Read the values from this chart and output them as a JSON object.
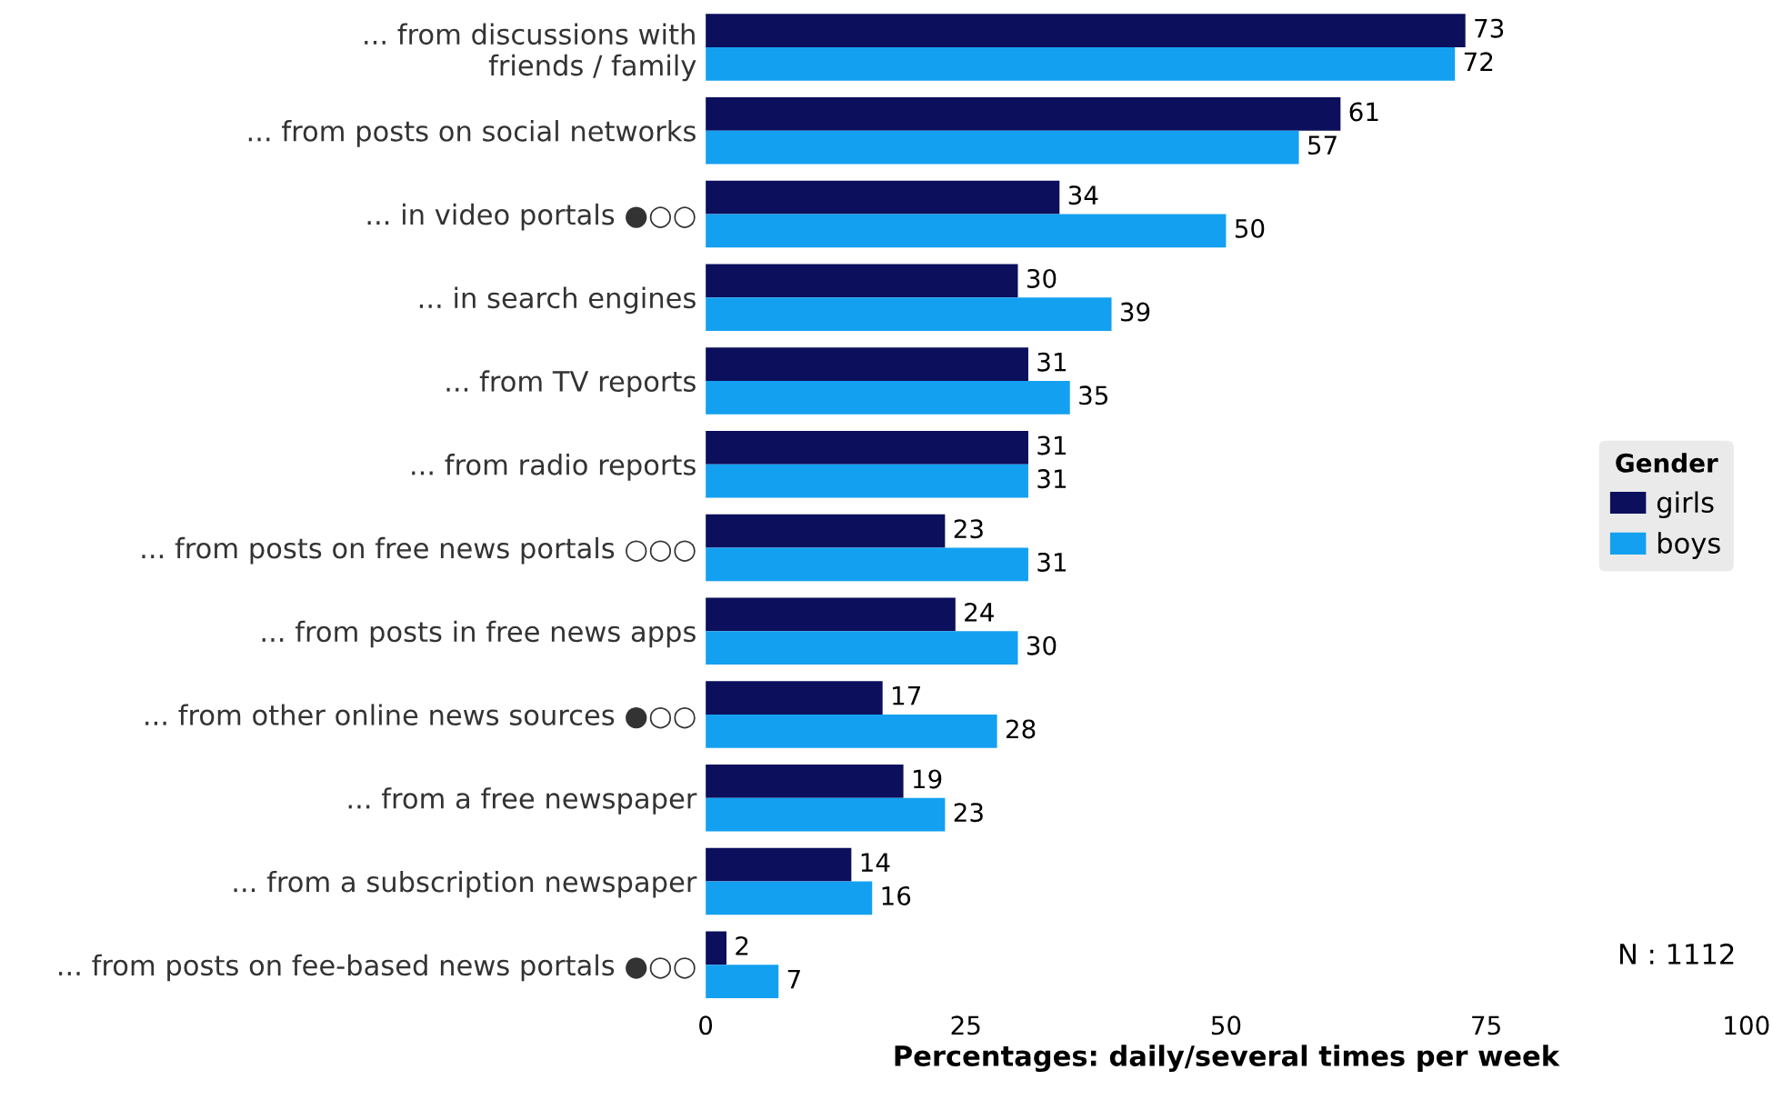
{
  "chart_data": {
    "type": "bar",
    "orientation": "horizontal",
    "xlabel": "Percentages: daily/several times per week",
    "legend_title": "Gender",
    "legend": "right",
    "categories": [
      "... from discussions with\nfriends / family",
      "... from posts on social networks",
      "... in video portals ●○○",
      "... in search engines",
      "... from TV reports",
      "... from radio reports",
      "... from posts on free news portals ○○○",
      "... from posts in free news apps",
      "... from other online news sources ●○○",
      "... from a free newspaper",
      "... from a subscription newspaper",
      "... from posts on fee-based news portals ●○○"
    ],
    "series": [
      {
        "name": "girls",
        "color": "#0b0f5c",
        "values": [
          73,
          61,
          34,
          30,
          31,
          31,
          23,
          24,
          17,
          19,
          14,
          2
        ]
      },
      {
        "name": "boys",
        "color": "#14a0f0",
        "values": [
          72,
          57,
          50,
          39,
          35,
          31,
          31,
          30,
          28,
          23,
          16,
          7
        ]
      }
    ],
    "xlim": [
      0,
      100
    ],
    "xticks": [
      0,
      25,
      50,
      75,
      100
    ],
    "grid": false,
    "data_labels": true,
    "annotations": [
      "N : 1112"
    ]
  }
}
